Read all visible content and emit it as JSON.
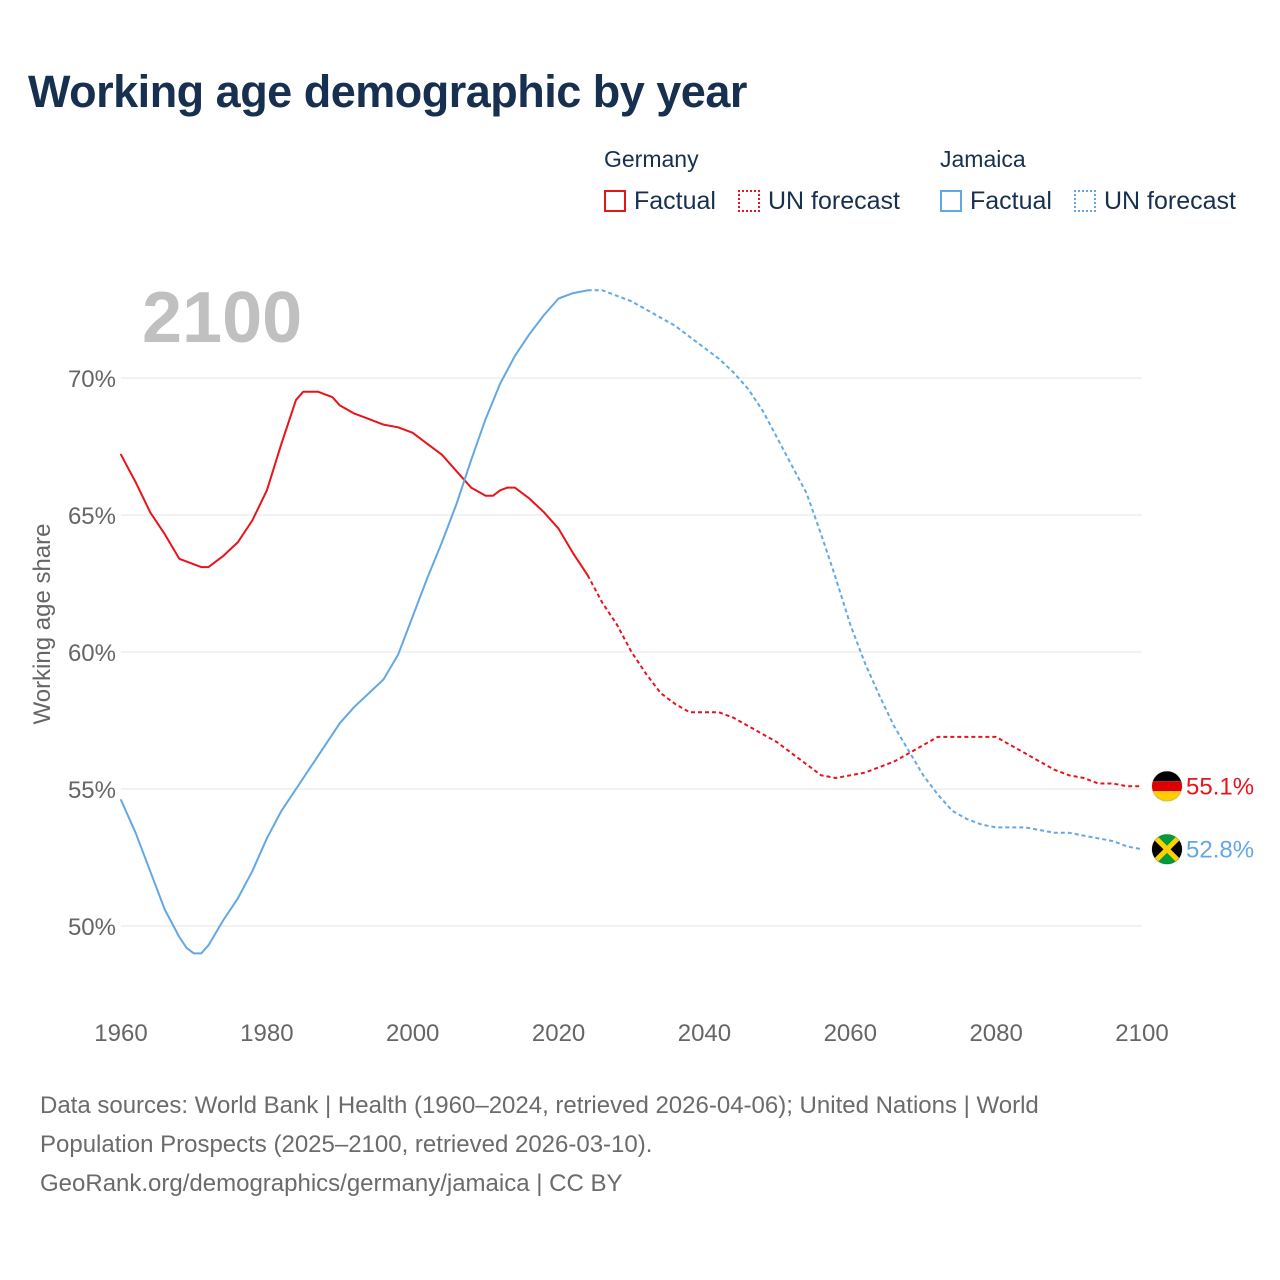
{
  "title": "Working age demographic by year",
  "legend": {
    "groups": [
      {
        "name": "Germany",
        "factual_label": "Factual",
        "forecast_label": "UN forecast"
      },
      {
        "name": "Jamaica",
        "factual_label": "Factual",
        "forecast_label": "UN forecast"
      }
    ]
  },
  "footer": {
    "line1": "Data sources: World Bank | Health (1960–2024, retrieved 2026-04-06); United Nations | World",
    "line2": "Population Prospects (2025–2100, retrieved 2026-03-10).",
    "line3": "GeoRank.org/demographics/germany/jamaica | CC BY"
  },
  "colors": {
    "germany": "#e8141c",
    "jamaica": "#63a8e4",
    "title": "#17304f",
    "grid": "#e4e4e4",
    "axis_text": "#666666",
    "year_watermark": "#c0c0c0"
  },
  "chart_data": {
    "type": "line",
    "title": "Working age demographic by year",
    "year_label": "2100",
    "ylabel": "Working age share",
    "xlabel": "",
    "xlim": [
      1960,
      2100
    ],
    "ylim": [
      48,
      74
    ],
    "yticks": [
      50,
      55,
      60,
      65,
      70
    ],
    "ytick_labels": [
      "50%",
      "55%",
      "60%",
      "65%",
      "70%"
    ],
    "xticks": [
      1960,
      1980,
      2000,
      2020,
      2040,
      2060,
      2080,
      2100
    ],
    "xtick_labels": [
      "1960",
      "1980",
      "2000",
      "2020",
      "2040",
      "2060",
      "2080",
      "2100"
    ],
    "grid": true,
    "series": [
      {
        "name": "Germany",
        "color": "#e8141c",
        "factual_end": 2024,
        "end_label": "55.1%",
        "flag": "germany-flag",
        "x": [
          1960,
          1962,
          1964,
          1966,
          1968,
          1970,
          1971,
          1972,
          1974,
          1976,
          1978,
          1980,
          1982,
          1984,
          1985,
          1986,
          1987,
          1988,
          1989,
          1990,
          1992,
          1994,
          1996,
          1998,
          2000,
          2002,
          2004,
          2006,
          2008,
          2010,
          2011,
          2012,
          2013,
          2014,
          2016,
          2018,
          2020,
          2022,
          2024,
          2026,
          2028,
          2030,
          2032,
          2034,
          2036,
          2038,
          2040,
          2042,
          2044,
          2046,
          2048,
          2050,
          2052,
          2054,
          2056,
          2058,
          2060,
          2062,
          2064,
          2066,
          2068,
          2070,
          2072,
          2074,
          2076,
          2078,
          2080,
          2082,
          2084,
          2086,
          2088,
          2090,
          2092,
          2094,
          2096,
          2098,
          2100
        ],
        "y": [
          67.2,
          66.2,
          65.1,
          64.3,
          63.4,
          63.2,
          63.1,
          63.1,
          63.5,
          64.0,
          64.8,
          65.9,
          67.6,
          69.2,
          69.5,
          69.5,
          69.5,
          69.4,
          69.3,
          69.0,
          68.7,
          68.5,
          68.3,
          68.2,
          68.0,
          67.6,
          67.2,
          66.6,
          66.0,
          65.7,
          65.7,
          65.9,
          66.0,
          66.0,
          65.6,
          65.1,
          64.5,
          63.6,
          62.8,
          61.8,
          61.0,
          60.0,
          59.2,
          58.5,
          58.1,
          57.8,
          57.8,
          57.8,
          57.6,
          57.3,
          57.0,
          56.7,
          56.3,
          55.9,
          55.5,
          55.4,
          55.5,
          55.6,
          55.8,
          56.0,
          56.3,
          56.6,
          56.9,
          56.9,
          56.9,
          56.9,
          56.9,
          56.6,
          56.3,
          56.0,
          55.7,
          55.5,
          55.4,
          55.2,
          55.2,
          55.1,
          55.1
        ]
      },
      {
        "name": "Jamaica",
        "color": "#63a8e4",
        "factual_end": 2024,
        "end_label": "52.8%",
        "flag": "jamaica-flag",
        "x": [
          1960,
          1962,
          1964,
          1966,
          1968,
          1969,
          1970,
          1971,
          1972,
          1974,
          1976,
          1978,
          1980,
          1982,
          1984,
          1986,
          1988,
          1990,
          1992,
          1994,
          1996,
          1998,
          2000,
          2002,
          2004,
          2006,
          2008,
          2010,
          2012,
          2014,
          2016,
          2018,
          2020,
          2022,
          2024,
          2026,
          2028,
          2030,
          2032,
          2034,
          2036,
          2038,
          2040,
          2042,
          2044,
          2046,
          2048,
          2050,
          2052,
          2054,
          2056,
          2058,
          2060,
          2062,
          2064,
          2066,
          2068,
          2070,
          2072,
          2074,
          2076,
          2078,
          2080,
          2082,
          2084,
          2086,
          2088,
          2090,
          2092,
          2094,
          2096,
          2098,
          2100
        ],
        "y": [
          54.6,
          53.4,
          52.0,
          50.6,
          49.6,
          49.2,
          49.0,
          49.0,
          49.3,
          50.2,
          51.0,
          52.0,
          53.2,
          54.2,
          55.0,
          55.8,
          56.6,
          57.4,
          58.0,
          58.5,
          59.0,
          59.9,
          61.3,
          62.7,
          64.0,
          65.4,
          67.0,
          68.5,
          69.8,
          70.8,
          71.6,
          72.3,
          72.9,
          73.1,
          73.2,
          73.2,
          73.0,
          72.8,
          72.5,
          72.2,
          71.9,
          71.5,
          71.1,
          70.7,
          70.2,
          69.6,
          68.8,
          67.8,
          66.8,
          65.8,
          64.3,
          62.7,
          61.0,
          59.6,
          58.4,
          57.3,
          56.4,
          55.5,
          54.8,
          54.2,
          53.9,
          53.7,
          53.6,
          53.6,
          53.6,
          53.5,
          53.4,
          53.4,
          53.3,
          53.2,
          53.1,
          52.9,
          52.8
        ]
      }
    ]
  }
}
